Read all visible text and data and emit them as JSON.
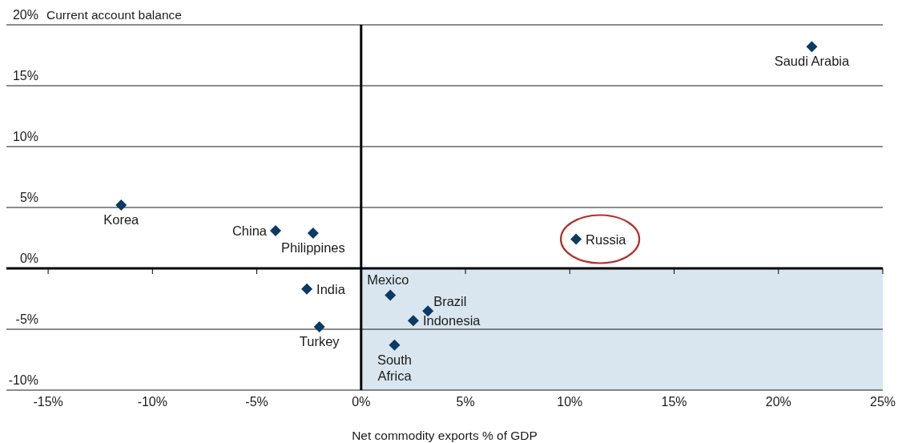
{
  "chart_data": {
    "type": "scatter",
    "xlabel": "Net commodity exports % of GDP",
    "ylabel": "Current account balance",
    "xlim": [
      -17,
      25
    ],
    "ylim": [
      -10,
      20
    ],
    "xticks": [
      {
        "value": -15,
        "label": "-15%"
      },
      {
        "value": -10,
        "label": "-10%"
      },
      {
        "value": -5,
        "label": "-5%"
      },
      {
        "value": 0,
        "label": "0%"
      },
      {
        "value": 5,
        "label": "5%"
      },
      {
        "value": 10,
        "label": "10%"
      },
      {
        "value": 15,
        "label": "15%"
      },
      {
        "value": 20,
        "label": "20%"
      },
      {
        "value": 25,
        "label": "25%"
      }
    ],
    "yticks": [
      {
        "value": -10,
        "label": "-10%"
      },
      {
        "value": -5,
        "label": "-5%"
      },
      {
        "value": 0,
        "label": "0%"
      },
      {
        "value": 5,
        "label": "5%"
      },
      {
        "value": 10,
        "label": "10%"
      },
      {
        "value": 15,
        "label": "15%"
      },
      {
        "value": 20,
        "label": "20%"
      }
    ],
    "grid": "y",
    "marker": "diamond",
    "ref_lines": [
      {
        "axis": "x",
        "value": 0,
        "color": "#000000"
      }
    ],
    "bands": [
      {
        "axis": "x",
        "from": 0,
        "to": 25,
        "color": "#d9e6f0"
      }
    ],
    "series": [
      {
        "name": "Saudi Arabia",
        "color": "#0a3a66",
        "x": [
          21.6
        ],
        "values": [
          18.2
        ]
      },
      {
        "name": "Korea",
        "color": "#0a3a66",
        "x": [
          -11.5
        ],
        "values": [
          5.2
        ]
      },
      {
        "name": "China",
        "color": "#0a3a66",
        "x": [
          -4.1
        ],
        "values": [
          3.1
        ]
      },
      {
        "name": "Philippines",
        "color": "#0a3a66",
        "x": [
          -2.3
        ],
        "values": [
          2.9
        ]
      },
      {
        "name": "Russia",
        "color": "#0a3a66",
        "x": [
          10.3
        ],
        "values": [
          2.4
        ]
      },
      {
        "name": "India",
        "color": "#0a3a66",
        "x": [
          -2.6
        ],
        "values": [
          -1.7
        ]
      },
      {
        "name": "Mexico",
        "color": "#0a3a66",
        "x": [
          1.4
        ],
        "values": [
          -2.2
        ]
      },
      {
        "name": "Brazil",
        "color": "#0a3a66",
        "x": [
          3.2
        ],
        "values": [
          -3.5
        ]
      },
      {
        "name": "Indonesia",
        "color": "#0a3a66",
        "x": [
          2.5
        ],
        "values": [
          -4.3
        ]
      },
      {
        "name": "Turkey",
        "color": "#0a3a66",
        "x": [
          -2.0
        ],
        "values": [
          -4.8
        ]
      },
      {
        "name": "South Africa",
        "color": "#0a3a66",
        "x": [
          1.6
        ],
        "values": [
          -6.3
        ]
      }
    ]
  }
}
